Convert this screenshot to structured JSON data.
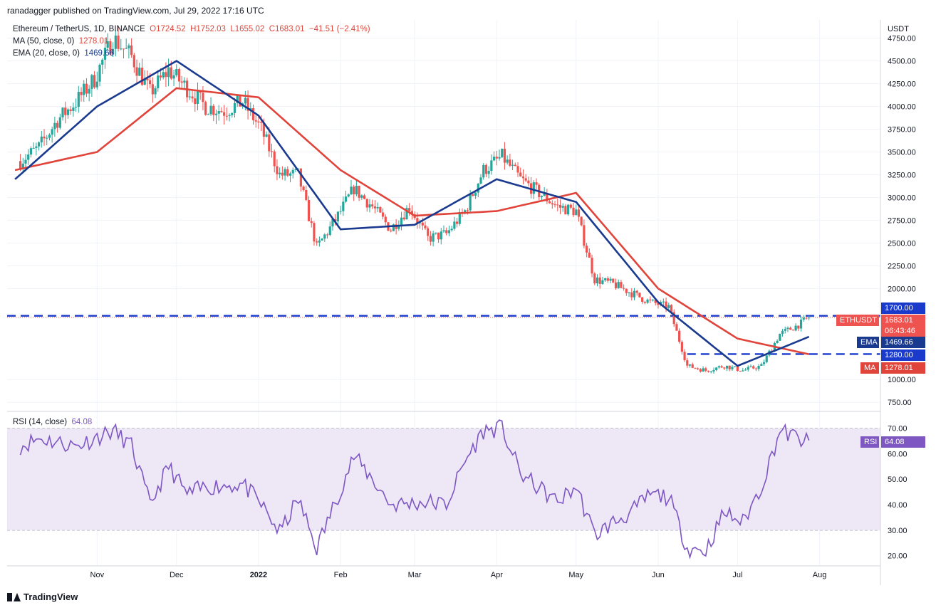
{
  "header": {
    "publisher": "ranadagger published on TradingView.com, Jul 29, 2022 17:16 UTC"
  },
  "legend": {
    "symbol": "Ethereum / TetherUS, 1D, BINANCE",
    "open": "O1724.52",
    "high": "H1752.03",
    "low": "L1655.02",
    "close": "C1683.01",
    "change": "−41.51 (−2.41%)",
    "ma_label": "MA (50, close, 0)",
    "ma_value": "1278.01",
    "ema_label": "EMA (20, close, 0)",
    "ema_value": "1469.66",
    "rsi_label": "RSI (14, close)",
    "rsi_value": "64.08"
  },
  "price_axis": {
    "unit": "USDT",
    "ticks": [
      "4750.00",
      "4500.00",
      "4250.00",
      "4000.00",
      "3750.00",
      "3500.00",
      "3250.00",
      "3000.00",
      "2750.00",
      "2500.00",
      "2250.00",
      "2000.00",
      "1000.00",
      "750.00"
    ]
  },
  "rsi_axis": {
    "ticks": [
      "70.00",
      "60.00",
      "50.00",
      "40.00",
      "30.00",
      "20.00"
    ]
  },
  "time_axis": {
    "ticks": [
      "Nov",
      "Dec",
      "2022",
      "Feb",
      "Mar",
      "Apr",
      "May",
      "Jun",
      "Jul",
      "Aug"
    ]
  },
  "tags": {
    "level_1700": "1700.00",
    "ethusdt_label": "ETHUSDT",
    "ethusdt_price": "1683.01",
    "ethusdt_countdown": "06:43:46",
    "ema_label": "EMA",
    "ema_value": "1469.66",
    "level_1280": "1280.00",
    "ma_label": "MA",
    "ma_value": "1278.01",
    "rsi_label": "RSI",
    "rsi_value": "64.08"
  },
  "branding": {
    "logo_text": "TradingView"
  },
  "colors": {
    "up": "#26a69a",
    "down": "#ef5350",
    "ema": "#1a3a8f",
    "ma": "#e0443a",
    "rsi": "#7e57c2",
    "level": "#1a3acc",
    "rsi_band": "#ede7f6"
  },
  "chart_data": [
    {
      "type": "candlestick",
      "title": "Ethereum / TetherUS, 1D, BINANCE",
      "ylabel": "USDT",
      "ylim": [
        650,
        4950
      ],
      "horizontal_levels": [
        1700,
        1280
      ],
      "points": [
        {
          "date": "2021-10-03",
          "close": 3400
        },
        {
          "date": "2021-10-10",
          "close": 3550
        },
        {
          "date": "2021-10-17",
          "close": 3850
        },
        {
          "date": "2021-10-24",
          "close": 4050
        },
        {
          "date": "2021-10-31",
          "close": 4300
        },
        {
          "date": "2021-11-07",
          "close": 4750
        },
        {
          "date": "2021-11-14",
          "close": 4550
        },
        {
          "date": "2021-11-21",
          "close": 4150
        },
        {
          "date": "2021-11-28",
          "close": 4400
        },
        {
          "date": "2021-12-05",
          "close": 4200
        },
        {
          "date": "2021-12-12",
          "close": 4000
        },
        {
          "date": "2021-12-19",
          "close": 3950
        },
        {
          "date": "2021-12-26",
          "close": 4050
        },
        {
          "date": "2022-01-02",
          "close": 3750
        },
        {
          "date": "2022-01-09",
          "close": 3250
        },
        {
          "date": "2022-01-16",
          "close": 3250
        },
        {
          "date": "2022-01-23",
          "close": 2450
        },
        {
          "date": "2022-01-30",
          "close": 2750
        },
        {
          "date": "2022-02-06",
          "close": 3100
        },
        {
          "date": "2022-02-13",
          "close": 2900
        },
        {
          "date": "2022-02-20",
          "close": 2650
        },
        {
          "date": "2022-02-27",
          "close": 2900
        },
        {
          "date": "2022-03-06",
          "close": 2550
        },
        {
          "date": "2022-03-13",
          "close": 2600
        },
        {
          "date": "2022-03-20",
          "close": 2850
        },
        {
          "date": "2022-03-27",
          "close": 3300
        },
        {
          "date": "2022-04-03",
          "close": 3450
        },
        {
          "date": "2022-04-10",
          "close": 3200
        },
        {
          "date": "2022-04-17",
          "close": 3050
        },
        {
          "date": "2022-04-24",
          "close": 2900
        },
        {
          "date": "2022-05-01",
          "close": 2850
        },
        {
          "date": "2022-05-08",
          "close": 2100
        },
        {
          "date": "2022-05-15",
          "close": 2050
        },
        {
          "date": "2022-05-22",
          "close": 1950
        },
        {
          "date": "2022-05-29",
          "close": 1850
        },
        {
          "date": "2022-06-05",
          "close": 1800
        },
        {
          "date": "2022-06-12",
          "close": 1150
        },
        {
          "date": "2022-06-19",
          "close": 1100
        },
        {
          "date": "2022-06-26",
          "close": 1150
        },
        {
          "date": "2022-07-03",
          "close": 1100
        },
        {
          "date": "2022-07-10",
          "close": 1150
        },
        {
          "date": "2022-07-17",
          "close": 1500
        },
        {
          "date": "2022-07-24",
          "close": 1600
        },
        {
          "date": "2022-07-28",
          "close": 1683
        }
      ],
      "series": [
        {
          "name": "MA (50, close, 0)",
          "points": [
            [
              "2021-10-01",
              3300
            ],
            [
              "2021-11-01",
              3500
            ],
            [
              "2021-12-01",
              4200
            ],
            [
              "2022-01-01",
              4100
            ],
            [
              "2022-02-01",
              3300
            ],
            [
              "2022-03-01",
              2800
            ],
            [
              "2022-04-01",
              2850
            ],
            [
              "2022-05-01",
              3050
            ],
            [
              "2022-06-01",
              2000
            ],
            [
              "2022-07-01",
              1450
            ],
            [
              "2022-07-28",
              1278
            ]
          ]
        },
        {
          "name": "EMA (20, close, 0)",
          "points": [
            [
              "2021-10-01",
              3200
            ],
            [
              "2021-11-01",
              4000
            ],
            [
              "2021-12-01",
              4500
            ],
            [
              "2022-01-01",
              3900
            ],
            [
              "2022-02-01",
              2650
            ],
            [
              "2022-03-01",
              2700
            ],
            [
              "2022-04-01",
              3200
            ],
            [
              "2022-05-01",
              2950
            ],
            [
              "2022-06-01",
              1850
            ],
            [
              "2022-07-01",
              1150
            ],
            [
              "2022-07-28",
              1470
            ]
          ]
        }
      ]
    },
    {
      "type": "line",
      "title": "RSI (14, close)",
      "ylim": [
        16,
        76
      ],
      "bands": [
        30,
        70
      ],
      "midline": 50,
      "points": [
        {
          "date": "2021-10-03",
          "value": 63
        },
        {
          "date": "2021-10-10",
          "value": 66
        },
        {
          "date": "2021-10-24",
          "value": 63
        },
        {
          "date": "2021-11-07",
          "value": 69
        },
        {
          "date": "2021-11-14",
          "value": 63
        },
        {
          "date": "2021-11-21",
          "value": 40
        },
        {
          "date": "2021-11-28",
          "value": 55
        },
        {
          "date": "2021-12-05",
          "value": 44
        },
        {
          "date": "2021-12-12",
          "value": 47
        },
        {
          "date": "2021-12-26",
          "value": 48
        },
        {
          "date": "2022-01-02",
          "value": 40
        },
        {
          "date": "2022-01-09",
          "value": 29
        },
        {
          "date": "2022-01-16",
          "value": 42
        },
        {
          "date": "2022-01-23",
          "value": 23
        },
        {
          "date": "2022-02-06",
          "value": 59
        },
        {
          "date": "2022-02-13",
          "value": 50
        },
        {
          "date": "2022-02-20",
          "value": 40
        },
        {
          "date": "2022-03-06",
          "value": 41
        },
        {
          "date": "2022-03-13",
          "value": 40
        },
        {
          "date": "2022-03-20",
          "value": 57
        },
        {
          "date": "2022-03-27",
          "value": 69
        },
        {
          "date": "2022-04-03",
          "value": 70
        },
        {
          "date": "2022-04-10",
          "value": 52
        },
        {
          "date": "2022-04-24",
          "value": 41
        },
        {
          "date": "2022-05-01",
          "value": 47
        },
        {
          "date": "2022-05-08",
          "value": 28
        },
        {
          "date": "2022-05-15",
          "value": 33
        },
        {
          "date": "2022-05-22",
          "value": 37
        },
        {
          "date": "2022-05-29",
          "value": 44
        },
        {
          "date": "2022-06-05",
          "value": 43
        },
        {
          "date": "2022-06-12",
          "value": 23
        },
        {
          "date": "2022-06-19",
          "value": 22
        },
        {
          "date": "2022-06-26",
          "value": 37
        },
        {
          "date": "2022-07-03",
          "value": 33
        },
        {
          "date": "2022-07-10",
          "value": 47
        },
        {
          "date": "2022-07-17",
          "value": 69
        },
        {
          "date": "2022-07-24",
          "value": 66
        },
        {
          "date": "2022-07-28",
          "value": 64.08
        }
      ]
    }
  ]
}
